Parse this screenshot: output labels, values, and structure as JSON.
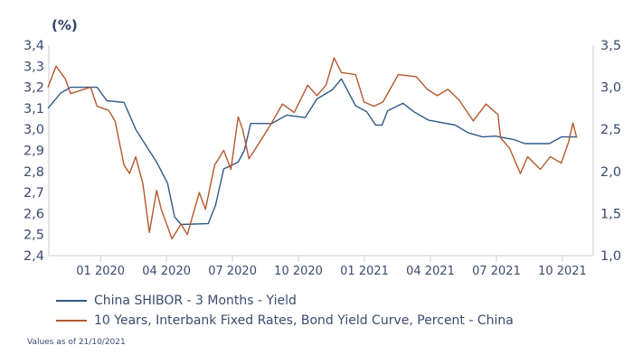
{
  "chart_data": {
    "type": "line",
    "unit_label": "(%)",
    "x_units": "months since Jan 2020",
    "xlim": [
      -2.35,
      22.4
    ],
    "x_ticks": [
      {
        "x": 0,
        "label": "01 2020"
      },
      {
        "x": 3,
        "label": "04 2020"
      },
      {
        "x": 6,
        "label": "07 2020"
      },
      {
        "x": 9,
        "label": "10 2020"
      },
      {
        "x": 12,
        "label": "01 2021"
      },
      {
        "x": 15,
        "label": "04 2021"
      },
      {
        "x": 18,
        "label": "07 2021"
      },
      {
        "x": 21,
        "label": "10 2021"
      }
    ],
    "left_axis": {
      "ylim": [
        2.4,
        3.4
      ],
      "ticks": [
        "2,4",
        "2,5",
        "2,6",
        "2,7",
        "2,8",
        "2,9",
        "3,0",
        "3,1",
        "3,2",
        "3,3",
        "3,4"
      ]
    },
    "right_axis": {
      "ylim": [
        1.0,
        3.5
      ],
      "ticks": [
        "1,0",
        "1,5",
        "2,0",
        "2,5",
        "3,0",
        "3,5"
      ]
    },
    "series": [
      {
        "name": "China SHIBOR - 3 Months - Yield",
        "axis": "right",
        "color": "#2f5a88",
        "x": [
          -2.39,
          -1.81,
          -1.36,
          -0.16,
          0.29,
          1.07,
          1.6,
          2.55,
          3.05,
          3.37,
          3.66,
          4.9,
          5.23,
          5.6,
          6.26,
          6.54,
          6.83,
          7.78,
          8.48,
          9.3,
          9.84,
          10.54,
          10.95,
          11.6,
          12.1,
          12.51,
          12.8,
          13.05,
          13.75,
          14.24,
          14.9,
          16.13,
          16.71,
          17.37,
          17.95,
          18.77,
          19.3,
          20.41,
          20.95,
          21.65
        ],
        "y": [
          2.75,
          2.93,
          3.0,
          3.0,
          2.84,
          2.82,
          2.5,
          2.11,
          1.86,
          1.46,
          1.37,
          1.38,
          1.6,
          2.03,
          2.11,
          2.25,
          2.57,
          2.57,
          2.67,
          2.64,
          2.86,
          2.97,
          3.1,
          2.78,
          2.71,
          2.55,
          2.55,
          2.72,
          2.81,
          2.71,
          2.61,
          2.55,
          2.46,
          2.41,
          2.42,
          2.38,
          2.33,
          2.33,
          2.41,
          2.41
        ]
      },
      {
        "name": "10 Years, Interbank Fixed Rates, Bond Yield Curve, Percent - China",
        "axis": "left",
        "color": "#b5582e",
        "x": [
          -2.39,
          -2.02,
          -1.6,
          -1.36,
          -0.45,
          -0.16,
          0.37,
          0.66,
          1.07,
          1.32,
          1.6,
          1.93,
          2.22,
          2.55,
          2.76,
          3.25,
          3.66,
          3.95,
          4.49,
          4.77,
          5.19,
          5.6,
          5.93,
          6.26,
          6.46,
          6.75,
          7.24,
          7.78,
          8.27,
          8.81,
          9.42,
          9.84,
          10.25,
          10.62,
          10.95,
          11.6,
          11.98,
          12.43,
          12.84,
          13.54,
          14.36,
          14.86,
          15.31,
          15.8,
          16.3,
          16.95,
          17.53,
          18.07,
          18.19,
          18.6,
          19.09,
          19.42,
          20.0,
          20.45,
          20.95,
          21.28,
          21.48,
          21.65
        ],
        "y": [
          3.2,
          3.3,
          3.24,
          3.17,
          3.2,
          3.11,
          3.09,
          3.04,
          2.83,
          2.79,
          2.87,
          2.74,
          2.51,
          2.71,
          2.62,
          2.48,
          2.55,
          2.5,
          2.7,
          2.62,
          2.83,
          2.9,
          2.81,
          3.06,
          3.0,
          2.86,
          2.94,
          3.03,
          3.12,
          3.08,
          3.21,
          3.16,
          3.21,
          3.34,
          3.27,
          3.26,
          3.13,
          3.11,
          3.13,
          3.26,
          3.25,
          3.19,
          3.16,
          3.19,
          3.14,
          3.04,
          3.12,
          3.07,
          2.96,
          2.91,
          2.79,
          2.87,
          2.81,
          2.87,
          2.84,
          2.94,
          3.03,
          2.96
        ]
      }
    ],
    "legend_placement": "bottom-left",
    "note": "Values as of 21/10/2021"
  }
}
